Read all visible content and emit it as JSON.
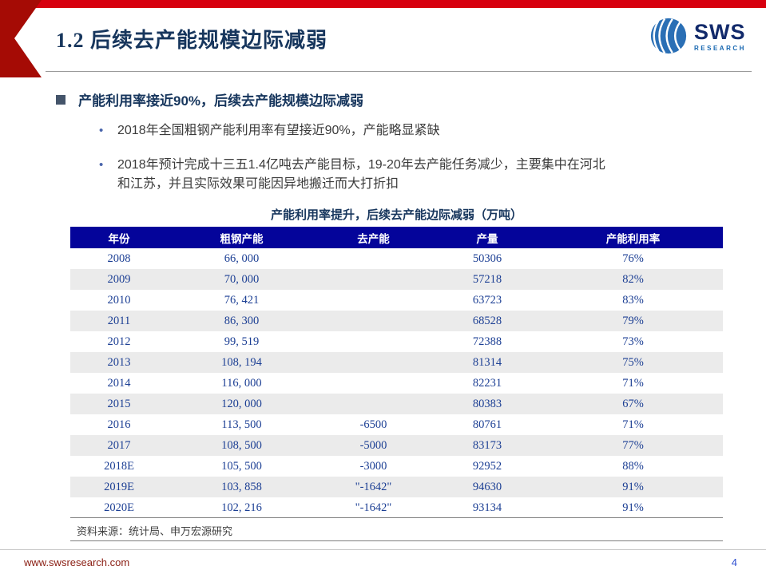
{
  "header": {
    "title": "1.2 后续去产能规模边际减弱",
    "logo_text": "SWS",
    "logo_subtext": "RESEARCH"
  },
  "content": {
    "heading": "产能利用率接近90%，后续去产能规模边际减弱",
    "bullets": [
      "2018年全国粗钢产能利用率有望接近90%，产能略显紧缺",
      "2018年预计完成十三五1.4亿吨去产能目标，19-20年去产能任务减少，主要集中在河北和江苏，并且实际效果可能因异地搬迁而大打折扣"
    ],
    "table_title": "产能利用率提升，后续去产能边际减弱（万吨）",
    "source": "资料来源：统计局、申万宏源研究"
  },
  "chart_data": {
    "type": "table",
    "title": "产能利用率提升，后续去产能边际减弱（万吨）",
    "columns": [
      "年份",
      "粗钢产能",
      "去产能",
      "产量",
      "产能利用率"
    ],
    "rows": [
      [
        "2008",
        "66, 000",
        "",
        "50306",
        "76%"
      ],
      [
        "2009",
        "70, 000",
        "",
        "57218",
        "82%"
      ],
      [
        "2010",
        "76, 421",
        "",
        "63723",
        "83%"
      ],
      [
        "2011",
        "86, 300",
        "",
        "68528",
        "79%"
      ],
      [
        "2012",
        "99, 519",
        "",
        "72388",
        "73%"
      ],
      [
        "2013",
        "108, 194",
        "",
        "81314",
        "75%"
      ],
      [
        "2014",
        "116, 000",
        "",
        "82231",
        "71%"
      ],
      [
        "2015",
        "120, 000",
        "",
        "80383",
        "67%"
      ],
      [
        "2016",
        "113, 500",
        "-6500",
        "80761",
        "71%"
      ],
      [
        "2017",
        "108, 500",
        "-5000",
        "83173",
        "77%"
      ],
      [
        "2018E",
        "105, 500",
        "-3000",
        "92952",
        "88%"
      ],
      [
        "2019E",
        "103, 858",
        "\"-1642\"",
        "94630",
        "91%"
      ],
      [
        "2020E",
        "102, 216",
        "\"-1642\"",
        "93134",
        "91%"
      ]
    ]
  },
  "footer": {
    "website": "www.swsresearch.com",
    "page_number": "4"
  },
  "colors": {
    "accent_red": "#d7000f",
    "ribbon_dark_red": "#a50b05",
    "navy_title": "#17365d",
    "table_header_bg": "#04049a",
    "table_text": "#1c3f94",
    "row_alt_bg": "#ebebeb",
    "footer_link": "#8b2015",
    "page_number": "#2e4fd0",
    "logo_blue": "#1767b1"
  }
}
